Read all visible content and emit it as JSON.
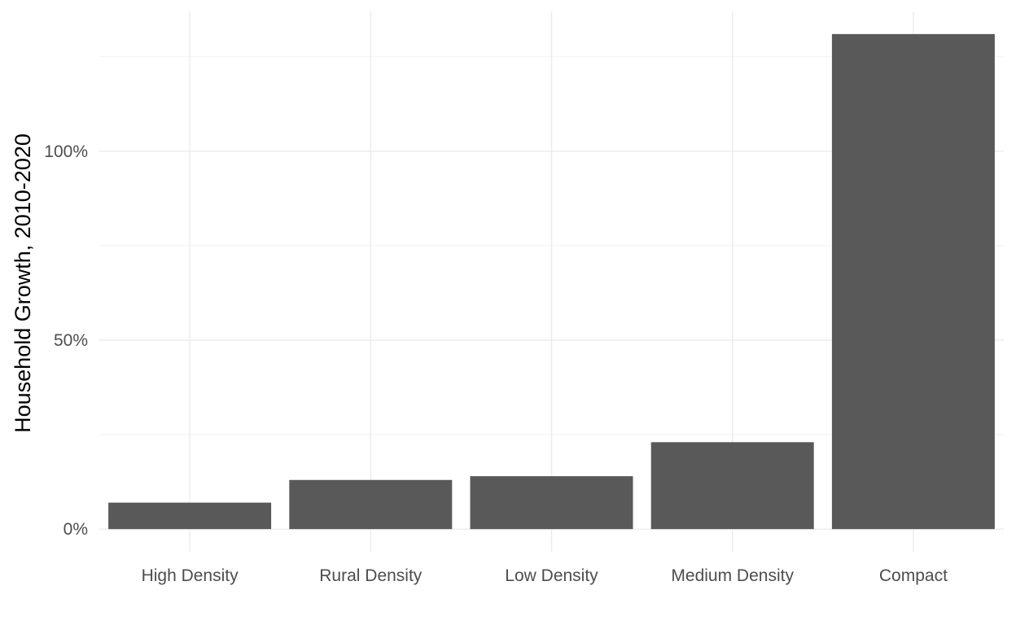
{
  "chart_data": {
    "type": "bar",
    "categories": [
      "High Density",
      "Rural Density",
      "Low Density",
      "Medium Density",
      "Compact"
    ],
    "values": [
      0.07,
      0.13,
      0.14,
      0.23,
      1.31
    ],
    "value_format": "percent",
    "ylabel": "Household Growth, 2010-2020",
    "xlabel": "",
    "ylim": [
      -0.06,
      1.37
    ],
    "y_ticks": [
      0,
      0.5,
      1.0
    ],
    "y_tick_labels": [
      "0%",
      "50%",
      "100%"
    ],
    "y_minor_ticks": [
      0.25,
      0.75,
      1.25
    ],
    "grid": true,
    "legend": "none",
    "bar_color": "#595959"
  }
}
